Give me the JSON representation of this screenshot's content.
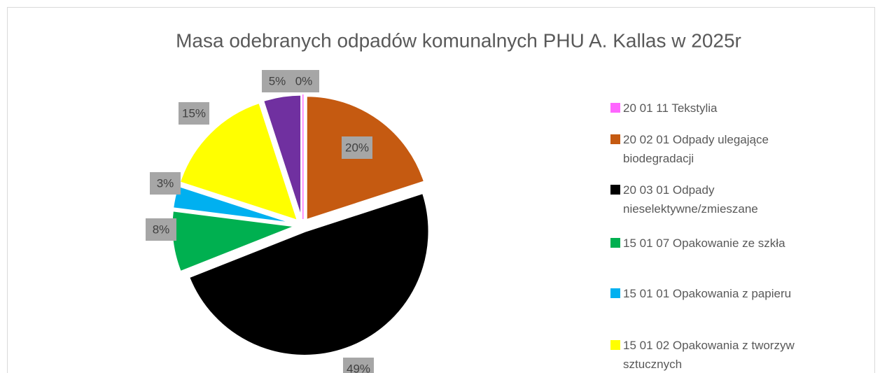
{
  "chart_data": {
    "type": "pie",
    "title": "Masa odebranych odpadów komunalnych PHU A. Kallas w 2025r",
    "categories": [
      "20 01 11 Tekstylia",
      "20 02 01  Odpady ulegające biodegradacji",
      "20 03 01  Odpady nieselektywne/zmieszane",
      "15 01 07  Opakowanie ze szkła",
      "15 01 01  Opakowania z papieru",
      "15 01 02  Opakowania z tworzyw sztucznych",
      null
    ],
    "values": [
      0,
      20,
      49,
      8,
      3,
      15,
      5
    ],
    "value_labels": [
      "0%",
      "20%",
      "49%",
      "8%",
      "3%",
      "15%",
      "5%"
    ],
    "colors": [
      "#ff66ff",
      "#c55a11",
      "#000000",
      "#00b050",
      "#00b0f0",
      "#ffff00",
      "#7030a0"
    ],
    "legend": "right"
  }
}
